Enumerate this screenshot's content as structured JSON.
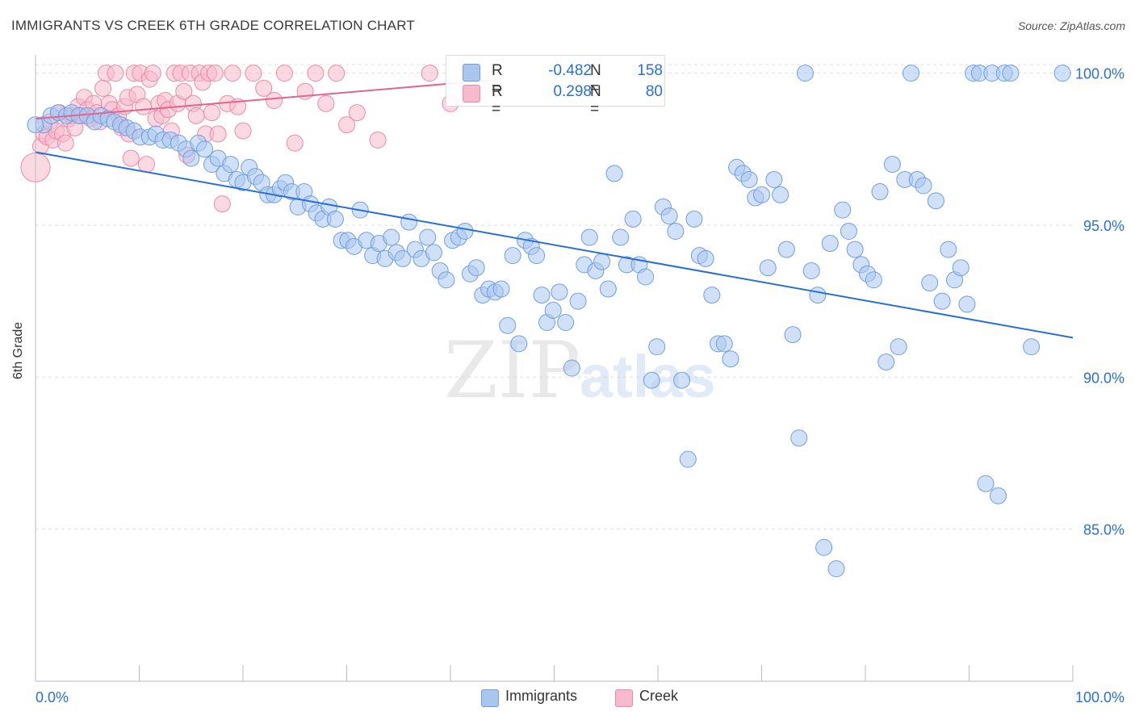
{
  "title": "IMMIGRANTS VS CREEK 6TH GRADE CORRELATION CHART",
  "source": "Source: ZipAtlas.com",
  "watermark": {
    "zip": "ZIP",
    "atlas": "atlas"
  },
  "legend": {
    "rows": [
      {
        "r_label": "R =",
        "r_value": "-0.482",
        "n_label": "N =",
        "n_value": "158"
      },
      {
        "r_label": "R =",
        "r_value": "0.298",
        "n_label": "N =",
        "n_value": "80"
      }
    ]
  },
  "bottom_legend": [
    {
      "label": "Immigrants"
    },
    {
      "label": "Creek"
    }
  ],
  "colors": {
    "immigrants_fill": "#a9c6f0",
    "immigrants_stroke": "#6f9fdf",
    "immigrants_line": "#2a6fd1",
    "creek_fill": "#f7b9cc",
    "creek_stroke": "#ea8aa8",
    "creek_line": "#e0658f",
    "tick_label": "#2a6fd1",
    "grid": "#dddddd",
    "axis": "#bbbbbb"
  },
  "chart_data": {
    "type": "scatter",
    "title": "IMMIGRANTS VS CREEK 6TH GRADE CORRELATION CHART",
    "xlabel": "",
    "ylabel": "6th Grade",
    "xlim": [
      0,
      100
    ],
    "ylim": [
      80.0,
      100.6
    ],
    "x_tick_labels": [
      "0.0%",
      "100.0%"
    ],
    "y_ticks": [
      85,
      90,
      95,
      100
    ],
    "y_tick_labels": [
      "85.0%",
      "90.0%",
      "95.0%",
      "100.0%"
    ],
    "grid": "horizontal dashed",
    "legend_position": "top-center",
    "series": [
      {
        "name": "Immigrants",
        "r": -0.482,
        "n": 158,
        "trend": {
          "x": [
            0,
            100
          ],
          "y": [
            97.4,
            91.3
          ]
        },
        "points": [
          [
            0.8,
            98.3,
            10
          ],
          [
            1.5,
            98.6,
            10
          ],
          [
            2.2,
            98.7,
            10
          ],
          [
            3.0,
            98.6,
            10
          ],
          [
            3.5,
            98.7,
            10
          ],
          [
            4.2,
            98.6,
            10
          ],
          [
            5.0,
            98.6,
            10
          ],
          [
            5.7,
            98.4,
            10
          ],
          [
            6.3,
            98.6,
            10
          ],
          [
            7.0,
            98.5,
            10
          ],
          [
            7.6,
            98.4,
            10
          ],
          [
            8.2,
            98.3,
            10
          ],
          [
            8.8,
            98.2,
            10
          ],
          [
            9.5,
            98.1,
            10
          ],
          [
            10.1,
            97.9,
            10
          ],
          [
            11.0,
            97.9,
            10
          ],
          [
            11.6,
            98.0,
            10
          ],
          [
            12.3,
            97.8,
            10
          ],
          [
            13.0,
            97.8,
            10
          ],
          [
            13.8,
            97.7,
            10
          ],
          [
            14.5,
            97.5,
            10
          ],
          [
            15.0,
            97.2,
            10
          ],
          [
            15.7,
            97.7,
            10
          ],
          [
            16.3,
            97.5,
            10
          ],
          [
            17.0,
            97.0,
            10
          ],
          [
            17.6,
            97.2,
            10
          ],
          [
            18.2,
            96.7,
            10
          ],
          [
            18.8,
            97.0,
            10
          ],
          [
            19.4,
            96.5,
            10
          ],
          [
            20.0,
            96.4,
            10
          ],
          [
            20.6,
            96.9,
            10
          ],
          [
            21.2,
            96.6,
            10
          ],
          [
            21.8,
            96.4,
            10
          ],
          [
            22.4,
            96.0,
            10
          ],
          [
            23.0,
            96.0,
            10
          ],
          [
            23.6,
            96.2,
            10
          ],
          [
            24.1,
            96.4,
            10
          ],
          [
            24.7,
            96.1,
            10
          ],
          [
            25.3,
            95.6,
            10
          ],
          [
            25.9,
            96.1,
            10
          ],
          [
            26.5,
            95.7,
            10
          ],
          [
            27.1,
            95.4,
            10
          ],
          [
            27.7,
            95.2,
            10
          ],
          [
            28.3,
            95.6,
            10
          ],
          [
            28.9,
            95.2,
            10
          ],
          [
            29.5,
            94.5,
            10
          ],
          [
            30.1,
            94.5,
            10
          ],
          [
            30.7,
            94.3,
            10
          ],
          [
            31.3,
            95.5,
            10
          ],
          [
            31.9,
            94.5,
            10
          ],
          [
            32.5,
            94.0,
            10
          ],
          [
            33.1,
            94.4,
            10
          ],
          [
            33.7,
            93.9,
            10
          ],
          [
            34.3,
            94.6,
            10
          ],
          [
            34.8,
            94.1,
            10
          ],
          [
            35.4,
            93.9,
            10
          ],
          [
            36.0,
            95.1,
            10
          ],
          [
            36.6,
            94.2,
            10
          ],
          [
            37.2,
            93.9,
            10
          ],
          [
            37.8,
            94.6,
            10
          ],
          [
            38.4,
            94.1,
            10
          ],
          [
            39.0,
            93.5,
            10
          ],
          [
            39.6,
            93.2,
            10
          ],
          [
            40.2,
            94.5,
            10
          ],
          [
            40.8,
            94.6,
            10
          ],
          [
            41.4,
            94.8,
            10
          ],
          [
            41.9,
            93.4,
            10
          ],
          [
            42.5,
            93.6,
            10
          ],
          [
            43.1,
            92.7,
            10
          ],
          [
            43.7,
            92.9,
            10
          ],
          [
            44.3,
            92.8,
            10
          ],
          [
            44.9,
            92.9,
            10
          ],
          [
            45.5,
            91.7,
            10
          ],
          [
            46.0,
            94.0,
            10
          ],
          [
            46.6,
            91.1,
            10
          ],
          [
            47.2,
            94.5,
            10
          ],
          [
            47.8,
            94.3,
            10
          ],
          [
            48.3,
            94.0,
            10
          ],
          [
            48.8,
            92.7,
            10
          ],
          [
            49.3,
            91.8,
            10
          ],
          [
            49.9,
            92.2,
            10
          ],
          [
            50.5,
            92.8,
            10
          ],
          [
            51.1,
            91.8,
            10
          ],
          [
            51.7,
            90.3,
            10
          ],
          [
            52.3,
            92.5,
            10
          ],
          [
            52.9,
            93.7,
            10
          ],
          [
            53.4,
            94.6,
            10
          ],
          [
            54.0,
            93.5,
            10
          ],
          [
            54.6,
            93.8,
            10
          ],
          [
            55.2,
            92.9,
            10
          ],
          [
            55.8,
            96.7,
            10
          ],
          [
            56.4,
            94.6,
            10
          ],
          [
            57.0,
            93.7,
            10
          ],
          [
            57.6,
            95.2,
            10
          ],
          [
            58.2,
            93.7,
            10
          ],
          [
            58.8,
            93.3,
            10
          ],
          [
            59.4,
            89.9,
            10
          ],
          [
            59.9,
            91.0,
            10
          ],
          [
            60.5,
            95.6,
            10
          ],
          [
            61.1,
            95.3,
            10
          ],
          [
            61.7,
            94.8,
            10
          ],
          [
            62.3,
            89.9,
            10
          ],
          [
            62.9,
            87.3,
            10
          ],
          [
            63.5,
            95.2,
            10
          ],
          [
            64.0,
            94.0,
            10
          ],
          [
            64.6,
            93.9,
            10
          ],
          [
            65.2,
            92.7,
            10
          ],
          [
            65.8,
            91.1,
            10
          ],
          [
            66.4,
            91.1,
            10
          ],
          [
            67.0,
            90.6,
            10
          ],
          [
            67.6,
            96.9,
            10
          ],
          [
            68.2,
            96.7,
            10
          ],
          [
            68.8,
            96.5,
            10
          ],
          [
            69.4,
            95.9,
            10
          ],
          [
            70.0,
            96.0,
            10
          ],
          [
            70.6,
            93.6,
            10
          ],
          [
            71.2,
            96.5,
            10
          ],
          [
            71.8,
            96.0,
            10
          ],
          [
            72.4,
            94.2,
            10
          ],
          [
            73.0,
            91.4,
            10
          ],
          [
            73.6,
            88.0,
            10
          ],
          [
            74.2,
            100.0,
            10
          ],
          [
            74.8,
            93.5,
            10
          ],
          [
            75.4,
            92.7,
            10
          ],
          [
            76.0,
            84.4,
            10
          ],
          [
            76.6,
            94.4,
            10
          ],
          [
            77.2,
            83.7,
            10
          ],
          [
            77.8,
            95.5,
            10
          ],
          [
            78.4,
            94.8,
            10
          ],
          [
            79.0,
            94.2,
            10
          ],
          [
            79.6,
            93.7,
            10
          ],
          [
            80.2,
            93.4,
            10
          ],
          [
            80.8,
            93.2,
            10
          ],
          [
            81.4,
            96.1,
            10
          ],
          [
            82.0,
            90.5,
            10
          ],
          [
            82.6,
            97.0,
            10
          ],
          [
            83.2,
            91.0,
            10
          ],
          [
            83.8,
            96.5,
            10
          ],
          [
            84.4,
            100.0,
            10
          ],
          [
            85.0,
            96.5,
            10
          ],
          [
            85.6,
            96.3,
            10
          ],
          [
            86.2,
            93.1,
            10
          ],
          [
            86.8,
            95.8,
            10
          ],
          [
            87.4,
            92.5,
            10
          ],
          [
            88.0,
            94.2,
            10
          ],
          [
            88.6,
            93.2,
            10
          ],
          [
            89.2,
            93.6,
            10
          ],
          [
            89.8,
            92.4,
            10
          ],
          [
            90.4,
            100.0,
            10
          ],
          [
            91.0,
            100.0,
            10
          ],
          [
            91.6,
            86.5,
            10
          ],
          [
            92.2,
            100.0,
            10
          ],
          [
            92.8,
            86.1,
            10
          ],
          [
            93.4,
            100.0,
            10
          ],
          [
            94.0,
            100.0,
            10
          ],
          [
            96.0,
            91.0,
            10
          ],
          [
            99.0,
            100.0,
            10
          ],
          [
            0.0,
            98.3,
            10
          ]
        ]
      },
      {
        "name": "Creek",
        "r": 0.298,
        "n": 80,
        "trend": {
          "x": [
            0,
            45
          ],
          "y": [
            98.5,
            99.8
          ]
        },
        "points": [
          [
            0.0,
            96.9,
            18
          ],
          [
            0.5,
            97.6,
            10
          ],
          [
            0.8,
            98.0,
            10
          ],
          [
            1.1,
            97.9,
            10
          ],
          [
            1.4,
            98.4,
            10
          ],
          [
            1.7,
            97.8,
            10
          ],
          [
            2.0,
            98.1,
            10
          ],
          [
            2.3,
            98.7,
            10
          ],
          [
            2.6,
            98.0,
            10
          ],
          [
            2.9,
            97.7,
            10
          ],
          [
            3.2,
            98.5,
            10
          ],
          [
            3.5,
            98.6,
            10
          ],
          [
            3.8,
            98.2,
            10
          ],
          [
            4.1,
            98.9,
            10
          ],
          [
            4.4,
            98.6,
            10
          ],
          [
            4.7,
            99.2,
            10
          ],
          [
            5.0,
            98.8,
            10
          ],
          [
            5.3,
            98.5,
            10
          ],
          [
            5.6,
            99.0,
            10
          ],
          [
            5.9,
            98.7,
            10
          ],
          [
            6.2,
            98.4,
            10
          ],
          [
            6.5,
            99.5,
            10
          ],
          [
            6.8,
            100.0,
            10
          ],
          [
            7.1,
            99.0,
            10
          ],
          [
            7.4,
            98.8,
            10
          ],
          [
            7.7,
            100.0,
            10
          ],
          [
            8.0,
            98.6,
            10
          ],
          [
            8.3,
            98.2,
            10
          ],
          [
            8.6,
            98.9,
            10
          ],
          [
            8.9,
            99.2,
            10
          ],
          [
            9.2,
            97.2,
            10
          ],
          [
            9.5,
            100.0,
            10
          ],
          [
            9.8,
            99.3,
            10
          ],
          [
            10.1,
            100.0,
            10
          ],
          [
            10.4,
            98.9,
            10
          ],
          [
            10.7,
            97.0,
            10
          ],
          [
            11.0,
            99.8,
            10
          ],
          [
            11.3,
            100.0,
            10
          ],
          [
            11.6,
            98.5,
            10
          ],
          [
            11.9,
            99.0,
            10
          ],
          [
            12.2,
            98.6,
            10
          ],
          [
            12.5,
            99.1,
            10
          ],
          [
            12.8,
            98.8,
            10
          ],
          [
            13.1,
            98.1,
            10
          ],
          [
            13.4,
            100.0,
            10
          ],
          [
            13.7,
            99.0,
            10
          ],
          [
            14.0,
            100.0,
            10
          ],
          [
            14.3,
            99.4,
            10
          ],
          [
            14.6,
            97.3,
            10
          ],
          [
            14.9,
            100.0,
            10
          ],
          [
            15.2,
            99.0,
            10
          ],
          [
            15.5,
            98.6,
            10
          ],
          [
            15.8,
            100.0,
            10
          ],
          [
            16.1,
            99.7,
            10
          ],
          [
            16.4,
            98.0,
            10
          ],
          [
            16.7,
            100.0,
            10
          ],
          [
            17.0,
            98.7,
            10
          ],
          [
            17.3,
            100.0,
            10
          ],
          [
            17.6,
            98.0,
            10
          ],
          [
            18.0,
            95.7,
            10
          ],
          [
            18.5,
            99.0,
            10
          ],
          [
            19.0,
            100.0,
            10
          ],
          [
            19.5,
            98.9,
            10
          ],
          [
            20.0,
            98.1,
            10
          ],
          [
            21.0,
            100.0,
            10
          ],
          [
            22.0,
            99.5,
            10
          ],
          [
            23.0,
            99.1,
            10
          ],
          [
            24.0,
            100.0,
            10
          ],
          [
            25.0,
            97.7,
            10
          ],
          [
            26.0,
            99.4,
            10
          ],
          [
            27.0,
            100.0,
            10
          ],
          [
            28.0,
            99.0,
            10
          ],
          [
            29.0,
            100.0,
            10
          ],
          [
            30.0,
            98.3,
            10
          ],
          [
            31.0,
            98.7,
            10
          ],
          [
            33.0,
            97.8,
            10
          ],
          [
            38.0,
            100.0,
            10
          ],
          [
            40.0,
            99.0,
            10
          ],
          [
            44.0,
            99.5,
            10
          ],
          [
            9.0,
            98.0,
            10
          ]
        ]
      }
    ]
  }
}
